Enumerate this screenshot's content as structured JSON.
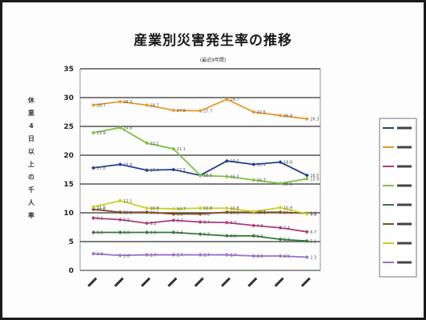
{
  "chart_data": {
    "type": "line",
    "title": "産業別災害発生率の推移",
    "subtitle": "(最近9年間)",
    "ylabel": "休業4日以上の千人率",
    "ylim": [
      0,
      35
    ],
    "yticks": [
      0,
      5,
      10,
      15,
      20,
      25,
      30,
      35
    ],
    "grid": true,
    "legend_position": "right",
    "categories": [
      "",
      "",
      "",
      "",
      "",
      "",
      "",
      "",
      ""
    ],
    "series": [
      {
        "name": "",
        "color": "#1f3f8f",
        "values": [
          17.8,
          18.4,
          17.4,
          17.5,
          16.5,
          19.0,
          18.4,
          18.8,
          16.5
        ]
      },
      {
        "name": "",
        "color": "#e39a2b",
        "values": [
          28.7,
          29.3,
          28.7,
          27.8,
          27.7,
          29.7,
          27.5,
          26.9,
          26.3
        ]
      },
      {
        "name": "",
        "color": "#b03a78",
        "values": [
          9.1,
          8.8,
          8.2,
          8.7,
          8.4,
          8.3,
          7.8,
          7.4,
          6.7
        ]
      },
      {
        "name": "",
        "color": "#7cc242",
        "values": [
          23.9,
          24.8,
          22.1,
          21.1,
          16.5,
          16.3,
          15.7,
          15.1,
          15.9
        ]
      },
      {
        "name": "",
        "color": "#2e7d32",
        "values": [
          6.6,
          6.6,
          6.6,
          6.6,
          6.3,
          6.0,
          6.0,
          5.4,
          5.1
        ]
      },
      {
        "name": "",
        "color": "#8a4a1c",
        "values": [
          10.6,
          10.1,
          10.1,
          9.8,
          9.8,
          10.1,
          10.1,
          10.1,
          9.9
        ]
      },
      {
        "name": "",
        "color": "#c9d21f",
        "values": [
          11.0,
          12.1,
          10.8,
          10.7,
          10.8,
          10.8,
          10.2,
          10.9,
          9.8
        ]
      },
      {
        "name": "",
        "color": "#9b6fd0",
        "values": [
          2.9,
          2.6,
          2.7,
          2.7,
          2.7,
          2.7,
          2.5,
          2.5,
          2.3
        ]
      }
    ]
  }
}
